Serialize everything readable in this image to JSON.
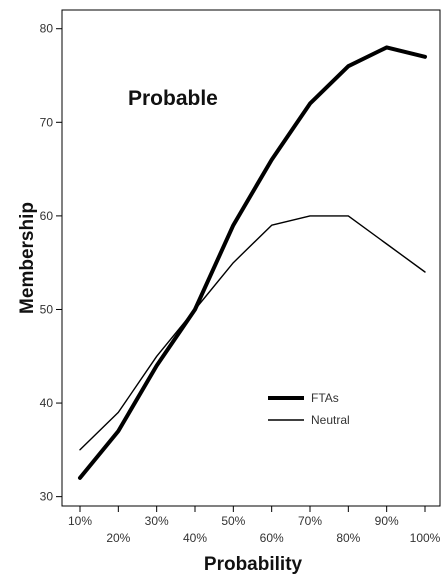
{
  "chart_data": {
    "type": "line",
    "title": "",
    "annotation": "Probable",
    "xlabel": "Probability",
    "ylabel": "Membership",
    "categories": [
      "10%",
      "20%",
      "30%",
      "40%",
      "50%",
      "60%",
      "70%",
      "80%",
      "90%",
      "100%"
    ],
    "ylim": [
      29,
      82
    ],
    "yticks": [
      30,
      40,
      50,
      60,
      70,
      80
    ],
    "grid": false,
    "legend_position": "bottom-right",
    "series": [
      {
        "name": "FTAs",
        "color": "#000000",
        "weight": "thick",
        "values": [
          32,
          37,
          44,
          50,
          59,
          66,
          72,
          76,
          78,
          77
        ]
      },
      {
        "name": "Neutral",
        "color": "#000000",
        "weight": "thin",
        "values": [
          35,
          39,
          45,
          50,
          55,
          59,
          60,
          60,
          57,
          54
        ]
      }
    ]
  }
}
